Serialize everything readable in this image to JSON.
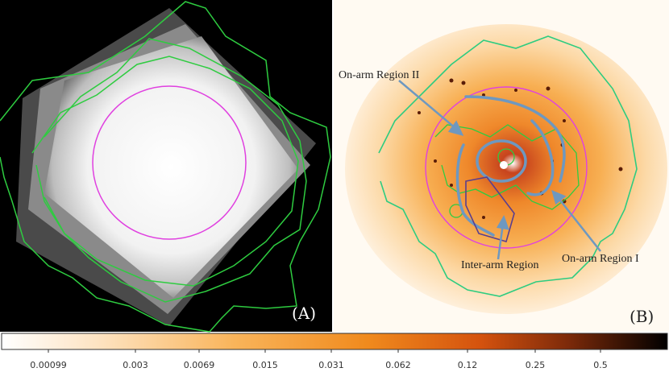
{
  "panels": {
    "left": {
      "label": "(A)"
    },
    "right": {
      "label": "(B)"
    }
  },
  "annotations": {
    "on_arm_ii": "On-arm Region II",
    "on_arm_i": "On-arm Region I",
    "inter_arm": "Inter-arm Region"
  },
  "colorbar": {
    "ticks": [
      "0.00099",
      "0.003",
      "0.0069",
      "0.015",
      "0.031",
      "0.062",
      "0.12",
      "0.25",
      "0.5"
    ]
  },
  "colors": {
    "contour_green": "#2ecc40",
    "circle_magenta": "#e040e0",
    "region_blue": "#6e98c0",
    "inter_arm_box": "#5a3e8e"
  }
}
